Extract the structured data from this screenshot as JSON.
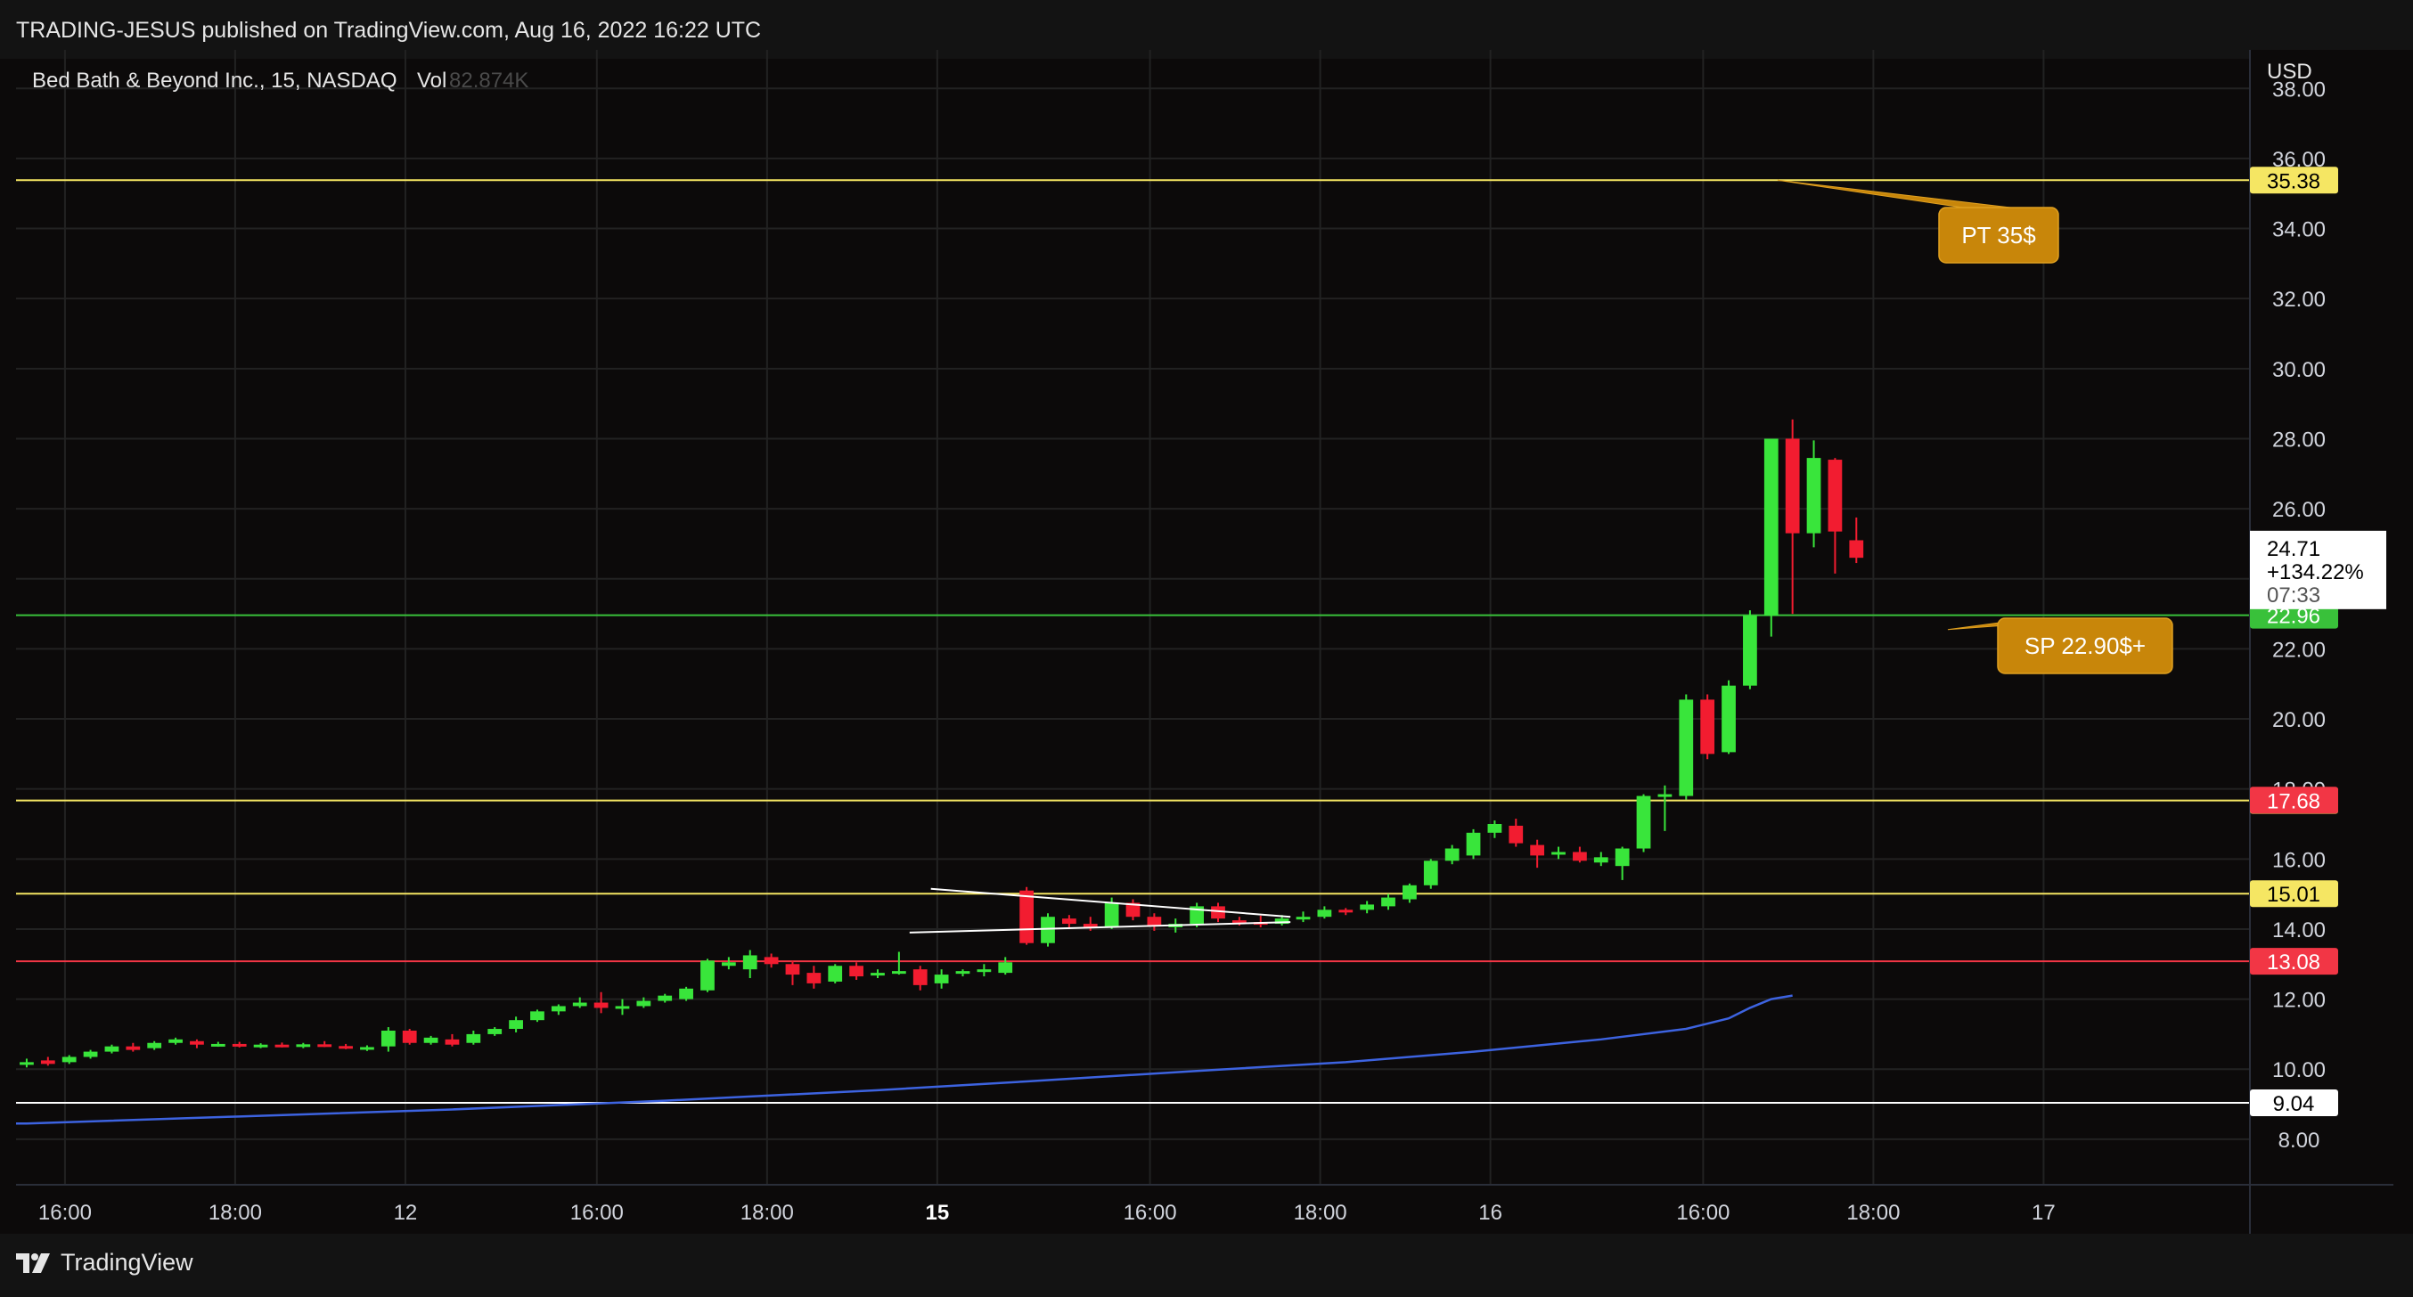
{
  "header": {
    "publisher_line": "TRADING-JESUS published on TradingView.com, Aug 16, 2022 16:22 UTC"
  },
  "footer": {
    "brand": "TradingView"
  },
  "colors": {
    "background": "#0c0a0a",
    "up": "#39e53b",
    "down": "#f21c30",
    "yellow_line": "#f5e663",
    "green_line": "#39c13a",
    "red_line": "#f23645",
    "white_line": "#ffffff",
    "ma_line": "#3d63e0",
    "callout": "#c8860a"
  },
  "chart_data": {
    "type": "candlestick",
    "title": "Bed Bath & Beyond Inc., 15, NASDAQ",
    "volume_label": "Vol",
    "volume_value": "82.874K",
    "currency": "USD",
    "ylim": [
      6.7,
      39.1
    ],
    "y_ticks": [
      "8.00",
      "10.00",
      "12.00",
      "14.00",
      "16.00",
      "18.00",
      "20.00",
      "22.00",
      "24.00",
      "26.00",
      "28.00",
      "30.00",
      "32.00",
      "34.00",
      "36.00",
      "38.00"
    ],
    "x_ticks": [
      {
        "label": "16:00",
        "bold": false
      },
      {
        "label": "18:00",
        "bold": false
      },
      {
        "label": "12",
        "bold": false
      },
      {
        "label": "16:00",
        "bold": false
      },
      {
        "label": "18:00",
        "bold": false
      },
      {
        "label": "15",
        "bold": true
      },
      {
        "label": "16:00",
        "bold": false
      },
      {
        "label": "18:00",
        "bold": false
      },
      {
        "label": "16",
        "bold": false
      },
      {
        "label": "16:00",
        "bold": false
      },
      {
        "label": "18:00",
        "bold": false
      },
      {
        "label": "17",
        "bold": false
      }
    ],
    "x_tick_slots": [
      1.8,
      9.8,
      17.8,
      26.8,
      34.8,
      42.8,
      52.8,
      60.8,
      68.8,
      78.8,
      86.8,
      94.8
    ],
    "slot_count": 105,
    "candles": [
      {
        "o": 10.15,
        "h": 10.3,
        "l": 10.05,
        "c": 10.2
      },
      {
        "o": 10.25,
        "h": 10.35,
        "l": 10.1,
        "c": 10.15
      },
      {
        "o": 10.2,
        "h": 10.4,
        "l": 10.15,
        "c": 10.35
      },
      {
        "o": 10.35,
        "h": 10.55,
        "l": 10.3,
        "c": 10.5
      },
      {
        "o": 10.5,
        "h": 10.7,
        "l": 10.45,
        "c": 10.65
      },
      {
        "o": 10.65,
        "h": 10.75,
        "l": 10.5,
        "c": 10.55
      },
      {
        "o": 10.6,
        "h": 10.8,
        "l": 10.55,
        "c": 10.75
      },
      {
        "o": 10.75,
        "h": 10.9,
        "l": 10.7,
        "c": 10.85
      },
      {
        "o": 10.8,
        "h": 10.85,
        "l": 10.6,
        "c": 10.7
      },
      {
        "o": 10.7,
        "h": 10.78,
        "l": 10.64,
        "c": 10.72
      },
      {
        "o": 10.72,
        "h": 10.78,
        "l": 10.62,
        "c": 10.66
      },
      {
        "o": 10.66,
        "h": 10.74,
        "l": 10.6,
        "c": 10.7
      },
      {
        "o": 10.7,
        "h": 10.76,
        "l": 10.62,
        "c": 10.67
      },
      {
        "o": 10.67,
        "h": 10.75,
        "l": 10.6,
        "c": 10.71
      },
      {
        "o": 10.71,
        "h": 10.8,
        "l": 10.63,
        "c": 10.66
      },
      {
        "o": 10.66,
        "h": 10.72,
        "l": 10.57,
        "c": 10.6
      },
      {
        "o": 10.6,
        "h": 10.68,
        "l": 10.52,
        "c": 10.63
      },
      {
        "o": 10.65,
        "h": 11.2,
        "l": 10.5,
        "c": 11.1
      },
      {
        "o": 11.1,
        "h": 11.15,
        "l": 10.7,
        "c": 10.75
      },
      {
        "o": 10.75,
        "h": 10.95,
        "l": 10.7,
        "c": 10.9
      },
      {
        "o": 10.85,
        "h": 11.0,
        "l": 10.65,
        "c": 10.7
      },
      {
        "o": 10.75,
        "h": 11.1,
        "l": 10.7,
        "c": 11.0
      },
      {
        "o": 11.0,
        "h": 11.2,
        "l": 10.95,
        "c": 11.15
      },
      {
        "o": 11.15,
        "h": 11.5,
        "l": 11.05,
        "c": 11.4
      },
      {
        "o": 11.4,
        "h": 11.7,
        "l": 11.35,
        "c": 11.65
      },
      {
        "o": 11.65,
        "h": 11.85,
        "l": 11.55,
        "c": 11.8
      },
      {
        "o": 11.8,
        "h": 12.05,
        "l": 11.75,
        "c": 11.9
      },
      {
        "o": 11.9,
        "h": 12.2,
        "l": 11.6,
        "c": 11.75
      },
      {
        "o": 11.75,
        "h": 12.0,
        "l": 11.55,
        "c": 11.8
      },
      {
        "o": 11.8,
        "h": 12.05,
        "l": 11.75,
        "c": 11.95
      },
      {
        "o": 11.95,
        "h": 12.15,
        "l": 11.9,
        "c": 12.1
      },
      {
        "o": 12.0,
        "h": 12.35,
        "l": 11.95,
        "c": 12.3
      },
      {
        "o": 12.25,
        "h": 13.15,
        "l": 12.2,
        "c": 13.1
      },
      {
        "o": 12.95,
        "h": 13.2,
        "l": 12.85,
        "c": 13.05
      },
      {
        "o": 12.85,
        "h": 13.4,
        "l": 12.6,
        "c": 13.25
      },
      {
        "o": 13.2,
        "h": 13.3,
        "l": 12.9,
        "c": 13.0
      },
      {
        "o": 13.0,
        "h": 13.1,
        "l": 12.4,
        "c": 12.7
      },
      {
        "o": 12.75,
        "h": 12.95,
        "l": 12.3,
        "c": 12.45
      },
      {
        "o": 12.5,
        "h": 13.0,
        "l": 12.45,
        "c": 12.95
      },
      {
        "o": 12.95,
        "h": 13.05,
        "l": 12.55,
        "c": 12.65
      },
      {
        "o": 12.7,
        "h": 12.85,
        "l": 12.6,
        "c": 12.75
      },
      {
        "o": 12.75,
        "h": 13.35,
        "l": 12.7,
        "c": 12.8
      },
      {
        "o": 12.85,
        "h": 12.95,
        "l": 12.25,
        "c": 12.4
      },
      {
        "o": 12.45,
        "h": 12.85,
        "l": 12.3,
        "c": 12.7
      },
      {
        "o": 12.75,
        "h": 12.85,
        "l": 12.65,
        "c": 12.8
      },
      {
        "o": 12.8,
        "h": 13.0,
        "l": 12.65,
        "c": 12.85
      },
      {
        "o": 12.75,
        "h": 13.2,
        "l": 12.7,
        "c": 13.05
      },
      {
        "o": 15.1,
        "h": 15.2,
        "l": 13.55,
        "c": 13.6
      },
      {
        "o": 13.6,
        "h": 14.45,
        "l": 13.5,
        "c": 14.35
      },
      {
        "o": 14.3,
        "h": 14.4,
        "l": 14.05,
        "c": 14.15
      },
      {
        "o": 14.15,
        "h": 14.35,
        "l": 13.95,
        "c": 14.05
      },
      {
        "o": 14.05,
        "h": 14.9,
        "l": 14.0,
        "c": 14.75
      },
      {
        "o": 14.75,
        "h": 14.85,
        "l": 14.25,
        "c": 14.35
      },
      {
        "o": 14.35,
        "h": 14.45,
        "l": 13.95,
        "c": 14.1
      },
      {
        "o": 14.05,
        "h": 14.3,
        "l": 13.9,
        "c": 14.15
      },
      {
        "o": 14.15,
        "h": 14.75,
        "l": 14.05,
        "c": 14.65
      },
      {
        "o": 14.65,
        "h": 14.75,
        "l": 14.2,
        "c": 14.3
      },
      {
        "o": 14.25,
        "h": 14.35,
        "l": 14.1,
        "c": 14.2
      },
      {
        "o": 14.2,
        "h": 14.38,
        "l": 14.05,
        "c": 14.15
      },
      {
        "o": 14.15,
        "h": 14.4,
        "l": 14.1,
        "c": 14.3
      },
      {
        "o": 14.3,
        "h": 14.5,
        "l": 14.2,
        "c": 14.35
      },
      {
        "o": 14.35,
        "h": 14.65,
        "l": 14.3,
        "c": 14.55
      },
      {
        "o": 14.55,
        "h": 14.6,
        "l": 14.4,
        "c": 14.5
      },
      {
        "o": 14.55,
        "h": 14.8,
        "l": 14.45,
        "c": 14.7
      },
      {
        "o": 14.65,
        "h": 15.0,
        "l": 14.55,
        "c": 14.9
      },
      {
        "o": 14.85,
        "h": 15.3,
        "l": 14.75,
        "c": 15.25
      },
      {
        "o": 15.25,
        "h": 16.0,
        "l": 15.15,
        "c": 15.95
      },
      {
        "o": 15.95,
        "h": 16.4,
        "l": 15.85,
        "c": 16.3
      },
      {
        "o": 16.1,
        "h": 16.85,
        "l": 16.0,
        "c": 16.75
      },
      {
        "o": 16.75,
        "h": 17.1,
        "l": 16.6,
        "c": 17.0
      },
      {
        "o": 16.95,
        "h": 17.15,
        "l": 16.35,
        "c": 16.45
      },
      {
        "o": 16.4,
        "h": 16.55,
        "l": 15.75,
        "c": 16.1
      },
      {
        "o": 16.15,
        "h": 16.35,
        "l": 16.0,
        "c": 16.2
      },
      {
        "o": 16.2,
        "h": 16.35,
        "l": 15.9,
        "c": 15.95
      },
      {
        "o": 15.9,
        "h": 16.2,
        "l": 15.8,
        "c": 16.05
      },
      {
        "o": 15.8,
        "h": 16.35,
        "l": 15.4,
        "c": 16.3
      },
      {
        "o": 16.3,
        "h": 17.85,
        "l": 16.2,
        "c": 17.8
      },
      {
        "o": 17.85,
        "h": 18.1,
        "l": 16.8,
        "c": 17.85
      },
      {
        "o": 17.8,
        "h": 20.7,
        "l": 17.7,
        "c": 20.55
      },
      {
        "o": 20.55,
        "h": 20.7,
        "l": 18.85,
        "c": 19.0
      },
      {
        "o": 19.05,
        "h": 21.1,
        "l": 19.0,
        "c": 20.95
      },
      {
        "o": 20.95,
        "h": 23.1,
        "l": 20.85,
        "c": 22.95
      },
      {
        "o": 22.95,
        "h": 28.0,
        "l": 22.35,
        "c": 28.0
      },
      {
        "o": 28.0,
        "h": 28.55,
        "l": 23.0,
        "c": 25.3
      },
      {
        "o": 25.3,
        "h": 27.95,
        "l": 24.9,
        "c": 27.45
      },
      {
        "o": 27.4,
        "h": 27.45,
        "l": 24.15,
        "c": 25.35
      },
      {
        "o": 25.1,
        "h": 25.75,
        "l": 24.45,
        "c": 24.6
      }
    ],
    "moving_average": [
      {
        "slot": 0,
        "v": 8.45
      },
      {
        "slot": 10,
        "v": 8.65
      },
      {
        "slot": 20,
        "v": 8.85
      },
      {
        "slot": 30,
        "v": 9.1
      },
      {
        "slot": 40,
        "v": 9.4
      },
      {
        "slot": 47,
        "v": 9.65
      },
      {
        "slot": 55,
        "v": 9.95
      },
      {
        "slot": 62,
        "v": 10.2
      },
      {
        "slot": 68,
        "v": 10.5
      },
      {
        "slot": 74,
        "v": 10.85
      },
      {
        "slot": 78,
        "v": 11.15
      },
      {
        "slot": 80,
        "v": 11.45
      },
      {
        "slot": 81,
        "v": 11.75
      },
      {
        "slot": 82,
        "v": 12.0
      },
      {
        "slot": 83,
        "v": 12.1
      }
    ],
    "horizontal_lines": [
      {
        "name": "pt-line",
        "value": 35.38,
        "color": "#f5e663",
        "label": "35.38",
        "label_bg": "#f5e663",
        "label_fg": "#000000"
      },
      {
        "name": "sp-line",
        "value": 22.96,
        "color": "#39c13a",
        "label": "22.96",
        "label_bg": "#39c13a",
        "label_fg": "#ffffff"
      },
      {
        "name": "resistance-line",
        "value": 17.67,
        "color": "#f5e663",
        "label": "17.67",
        "label_bg": "#f5e663",
        "label_fg": "#000000"
      },
      {
        "name": "breakout-line",
        "value": 15.01,
        "color": "#f5e663",
        "label": "15.01",
        "label_bg": "#f5e663",
        "label_fg": "#000000"
      },
      {
        "name": "support-line",
        "value": 13.08,
        "color": "#f23645",
        "label": "13.08",
        "label_bg": "#f23645",
        "label_fg": "#ffffff"
      },
      {
        "name": "floor-line",
        "value": 9.04,
        "color": "#ffffff",
        "label": "9.04",
        "label_bg": "#ffffff",
        "label_fg": "#000000"
      }
    ],
    "extra_price_labels": [
      {
        "name": "high-price-label",
        "value": 17.68,
        "label": "17.68",
        "bg": "#f23645",
        "fg": "#ffffff"
      }
    ],
    "current_price": {
      "price": "24.71",
      "change": "+134.22%",
      "countdown": "07:33",
      "value": 24.71
    },
    "annotations": [
      {
        "name": "pt-callout",
        "text": "PT 35$",
        "anchor_slot": 82.3,
        "anchor_value": 35.38
      },
      {
        "name": "sp-callout",
        "text": "SP 22.90$+",
        "anchor_slot": 90.3,
        "anchor_value": 22.55
      }
    ],
    "triangle_pattern": [
      {
        "from_slot": 42.5,
        "from_value": 15.15,
        "to_slot": 59.4,
        "to_value": 14.35
      },
      {
        "from_slot": 41.5,
        "from_value": 13.9,
        "to_slot": 59.4,
        "to_value": 14.2
      }
    ]
  }
}
